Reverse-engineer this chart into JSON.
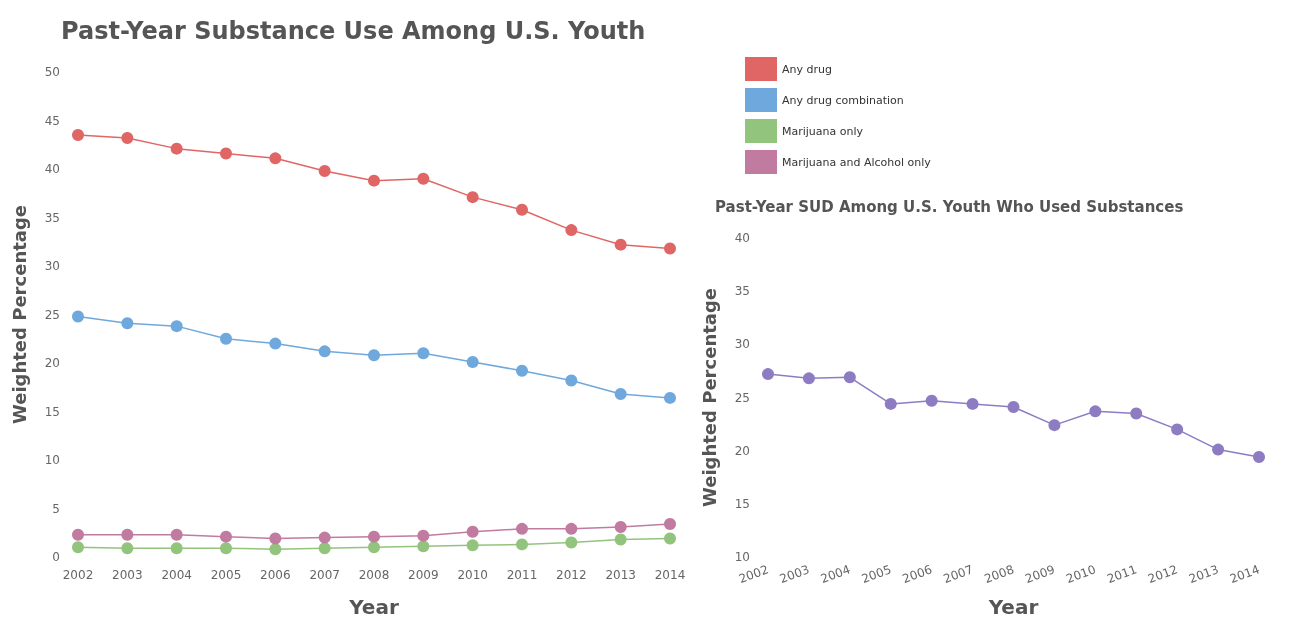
{
  "chart_data": [
    {
      "type": "line",
      "title": "Past-Year Substance Use Among U.S. Youth",
      "xlabel": "Year",
      "ylabel": "Weighted Percentage",
      "categories": [
        "2002",
        "2003",
        "2004",
        "2005",
        "2006",
        "2007",
        "2008",
        "2009",
        "2010",
        "2011",
        "2012",
        "2013",
        "2014"
      ],
      "series": [
        {
          "name": "Any drug",
          "color": "#e06666",
          "values": [
            43.5,
            43.2,
            42.1,
            41.6,
            41.1,
            39.8,
            38.8,
            39.0,
            37.1,
            35.8,
            33.7,
            32.2,
            31.8
          ]
        },
        {
          "name": "Any drug combination",
          "color": "#6fa8dc",
          "values": [
            24.8,
            24.1,
            23.8,
            22.5,
            22.0,
            21.2,
            20.8,
            21.0,
            20.1,
            19.2,
            18.2,
            16.8,
            16.4
          ]
        },
        {
          "name": "Marijuana only",
          "color": "#93c47d",
          "values": [
            1.0,
            0.9,
            0.9,
            0.9,
            0.8,
            0.9,
            1.0,
            1.1,
            1.2,
            1.3,
            1.5,
            1.8,
            1.9
          ]
        },
        {
          "name": "Marijuana and Alcohol only",
          "color": "#c27ba0",
          "values": [
            2.3,
            2.3,
            2.3,
            2.1,
            1.9,
            2.0,
            2.1,
            2.2,
            2.6,
            2.9,
            2.9,
            3.1,
            3.4
          ]
        }
      ],
      "ylim": [
        0,
        50
      ],
      "yticks": [
        0,
        5,
        10,
        15,
        20,
        25,
        30,
        35,
        40,
        45,
        50
      ],
      "grid": false,
      "legend": "top right",
      "marker": "circle",
      "line_style": "solid"
    },
    {
      "type": "line",
      "title": "Past-Year SUD Among U.S. Youth Who Used Substances",
      "xlabel": "Year",
      "ylabel": "Weighted Percentage",
      "categories": [
        "2002",
        "2003",
        "2004",
        "2005",
        "2006",
        "2007",
        "2008",
        "2009",
        "2010",
        "2011",
        "2012",
        "2013",
        "2014"
      ],
      "series": [
        {
          "color": "#8e7cc3",
          "values": [
            27.2,
            26.8,
            26.9,
            24.4,
            24.7,
            24.4,
            24.1,
            22.4,
            23.7,
            23.5,
            22.0,
            20.1,
            19.4
          ]
        }
      ],
      "ylim": [
        10,
        40
      ],
      "yticks": [
        10,
        15,
        20,
        25,
        30,
        35,
        40
      ],
      "grid": false,
      "marker": "circle",
      "line_style": "solid"
    }
  ]
}
